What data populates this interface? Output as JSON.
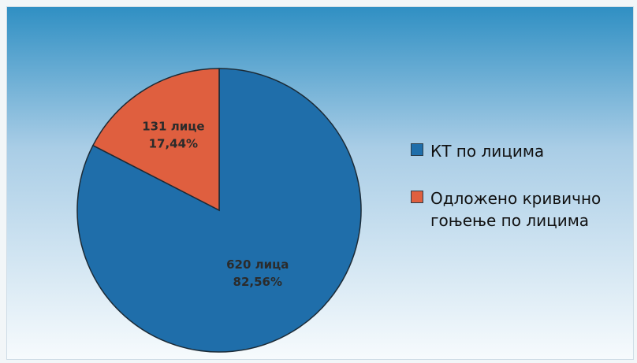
{
  "chart_data": {
    "type": "pie",
    "title": "",
    "slices": [
      {
        "name": "КТ по лицима",
        "value": 620,
        "percent": 82.56,
        "label_line1": "620 лица",
        "label_line2": "82,56%",
        "color": "#1f6eaa",
        "label_color": "#2b2b2b"
      },
      {
        "name": "Одложено кривично гоњење по лицима",
        "value": 131,
        "percent": 17.44,
        "label_line1": "131 лице",
        "label_line2": "17,44%",
        "color": "#df5f3f",
        "label_color": "#2b2b2b"
      }
    ],
    "start_angle_deg": 0,
    "direction": "clockwise",
    "legend_placement": "right",
    "outline_color": "#1c2a35"
  },
  "legend": {
    "items": [
      {
        "label": "КТ по лицима",
        "color": "#1f6eaa"
      },
      {
        "label": "Одложено кривично гоњење по лицима",
        "color": "#df5f3f"
      }
    ]
  }
}
